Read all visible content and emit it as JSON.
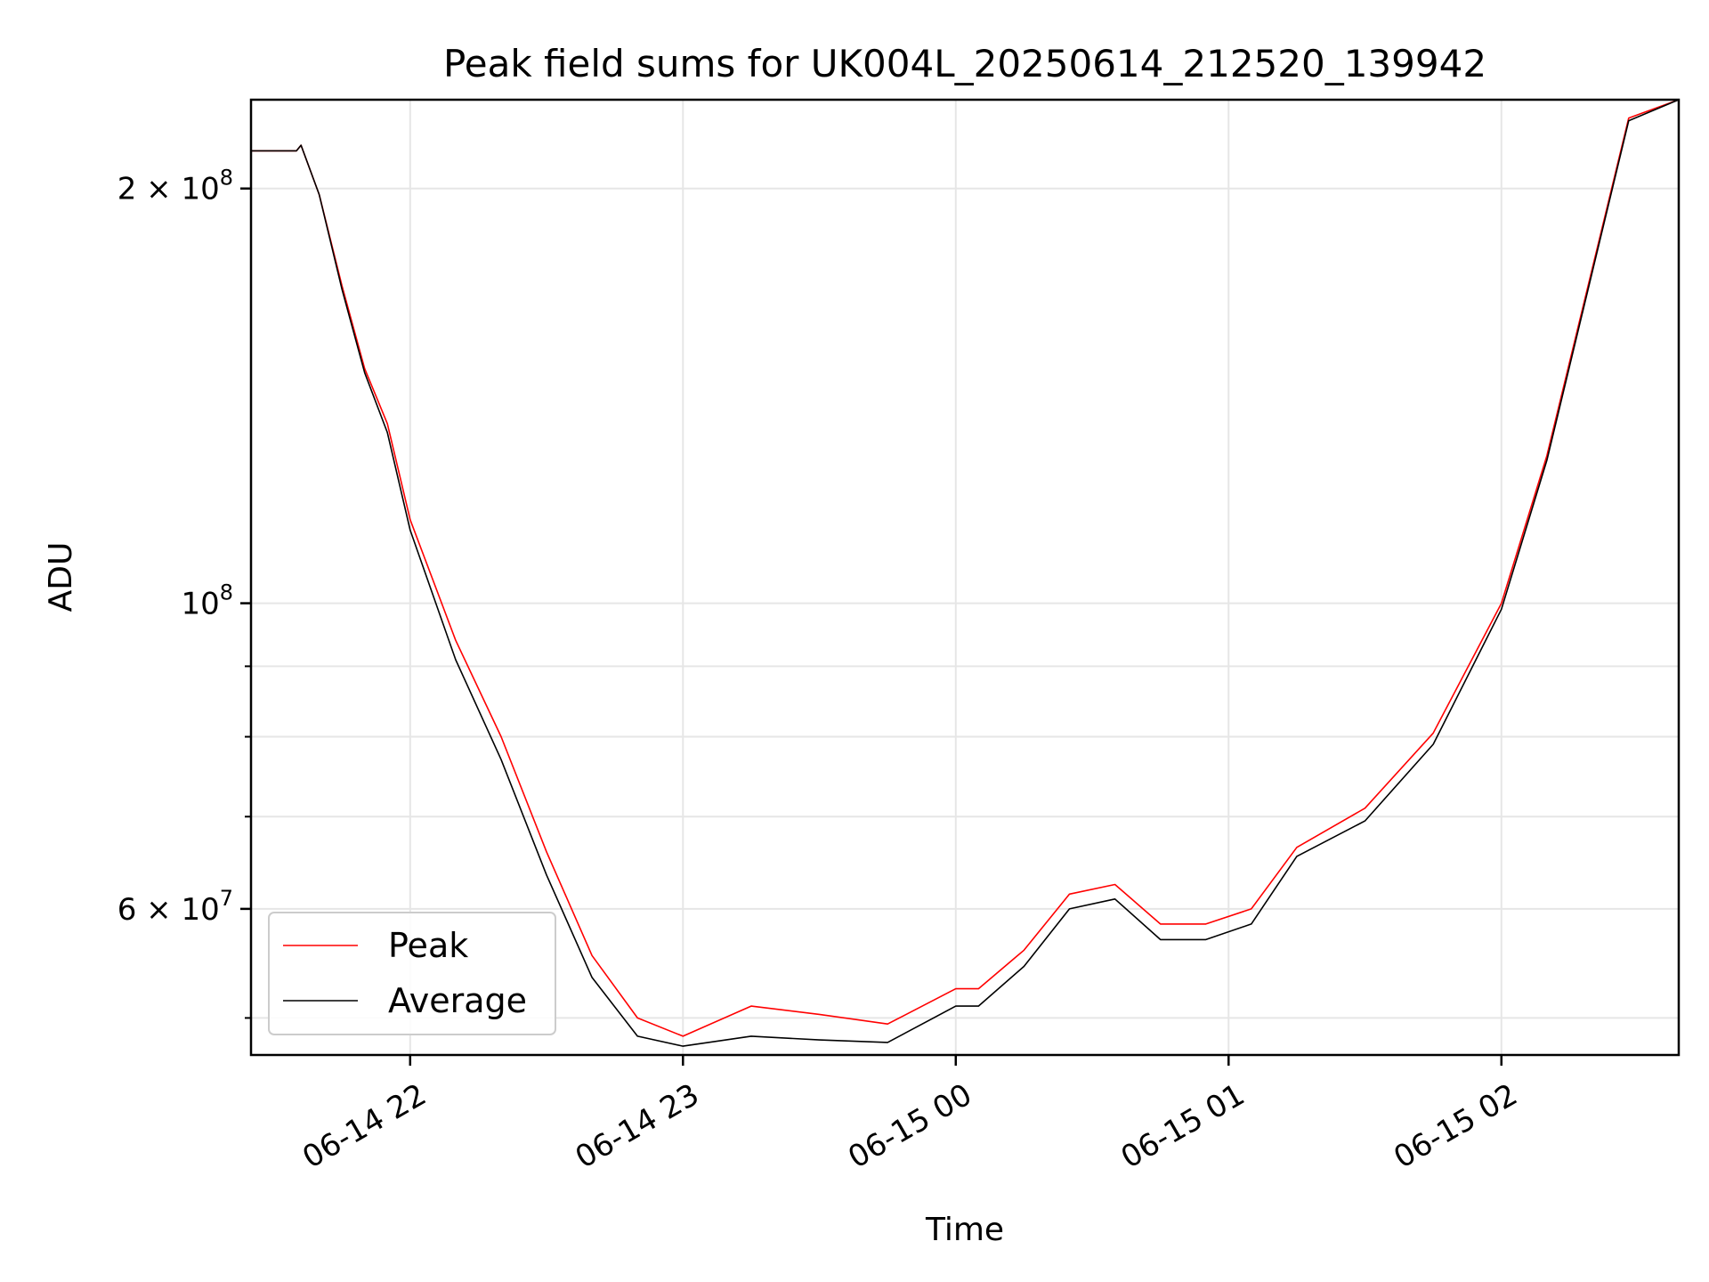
{
  "chart_data": {
    "type": "line",
    "title": "Peak field sums for UK004L_20250614_212520_139942",
    "xlabel": "Time",
    "ylabel": "ADU",
    "y_scale": "log",
    "grid": true,
    "legend_position": "lower-left",
    "xlim": [
      "2025-06-14 21:25",
      "2025-06-15 02:39"
    ],
    "ylim": [
      47000000,
      232000000
    ],
    "x_ticks": [
      {
        "value": "2025-06-14 22:00",
        "label": "06-14 22"
      },
      {
        "value": "2025-06-14 23:00",
        "label": "06-14 23"
      },
      {
        "value": "2025-06-15 00:00",
        "label": "06-15 00"
      },
      {
        "value": "2025-06-15 01:00",
        "label": "06-15 01"
      },
      {
        "value": "2025-06-15 02:00",
        "label": "06-15 02"
      }
    ],
    "y_ticks_major": [
      {
        "value": 60000000,
        "base": "6",
        "mult": "×",
        "pow_base": "10",
        "exp": "7"
      },
      {
        "value": 100000000,
        "base": "",
        "mult": "",
        "pow_base": "10",
        "exp": "8"
      },
      {
        "value": 200000000,
        "base": "2",
        "mult": "×",
        "pow_base": "10",
        "exp": "8"
      }
    ],
    "y_ticks_minor": [
      50000000,
      70000000,
      80000000,
      90000000
    ],
    "series": [
      {
        "name": "Peak",
        "color": "#ff0000",
        "x": [
          "2025-06-14 21:25",
          "2025-06-14 21:35",
          "2025-06-14 21:36",
          "2025-06-14 21:40",
          "2025-06-14 21:45",
          "2025-06-14 21:50",
          "2025-06-14 21:55",
          "2025-06-14 22:00",
          "2025-06-14 22:10",
          "2025-06-14 22:20",
          "2025-06-14 22:30",
          "2025-06-14 22:40",
          "2025-06-14 22:50",
          "2025-06-14 23:00",
          "2025-06-14 23:15",
          "2025-06-14 23:30",
          "2025-06-14 23:45",
          "2025-06-15 00:00",
          "2025-06-15 00:05",
          "2025-06-15 00:15",
          "2025-06-15 00:25",
          "2025-06-15 00:35",
          "2025-06-15 00:45",
          "2025-06-15 00:55",
          "2025-06-15 01:05",
          "2025-06-15 01:15",
          "2025-06-15 01:30",
          "2025-06-15 01:45",
          "2025-06-15 02:00",
          "2025-06-15 02:10",
          "2025-06-15 02:20",
          "2025-06-15 02:28",
          "2025-06-15 02:39"
        ],
        "y": [
          213000000,
          213000000,
          215000000,
          198000000,
          170000000,
          148000000,
          135000000,
          115000000,
          94000000,
          80000000,
          66000000,
          55500000,
          50000000,
          48500000,
          51000000,
          50300000,
          49500000,
          52500000,
          52500000,
          56000000,
          61500000,
          62500000,
          58500000,
          58500000,
          60000000,
          66500000,
          71000000,
          80500000,
          100000000,
          128000000,
          175000000,
          225000000,
          232000000
        ]
      },
      {
        "name": "Average",
        "color": "#000000",
        "x": [
          "2025-06-14 21:25",
          "2025-06-14 21:35",
          "2025-06-14 21:36",
          "2025-06-14 21:40",
          "2025-06-14 21:45",
          "2025-06-14 21:50",
          "2025-06-14 21:55",
          "2025-06-14 22:00",
          "2025-06-14 22:10",
          "2025-06-14 22:20",
          "2025-06-14 22:30",
          "2025-06-14 22:40",
          "2025-06-14 22:50",
          "2025-06-14 23:00",
          "2025-06-14 23:15",
          "2025-06-14 23:30",
          "2025-06-14 23:45",
          "2025-06-15 00:00",
          "2025-06-15 00:05",
          "2025-06-15 00:15",
          "2025-06-15 00:25",
          "2025-06-15 00:35",
          "2025-06-15 00:45",
          "2025-06-15 00:55",
          "2025-06-15 01:05",
          "2025-06-15 01:15",
          "2025-06-15 01:30",
          "2025-06-15 01:45",
          "2025-06-15 02:00",
          "2025-06-15 02:10",
          "2025-06-15 02:20",
          "2025-06-15 02:28",
          "2025-06-15 02:39"
        ],
        "y": [
          213000000,
          213000000,
          215000000,
          198000000,
          169000000,
          147000000,
          133000000,
          113000000,
          91000000,
          77000000,
          63500000,
          53500000,
          48500000,
          47700000,
          48500000,
          48200000,
          48000000,
          51000000,
          51000000,
          54500000,
          60000000,
          61000000,
          57000000,
          57000000,
          58500000,
          65500000,
          69500000,
          79000000,
          99000000,
          127000000,
          174000000,
          224000000,
          232000000
        ]
      }
    ]
  }
}
